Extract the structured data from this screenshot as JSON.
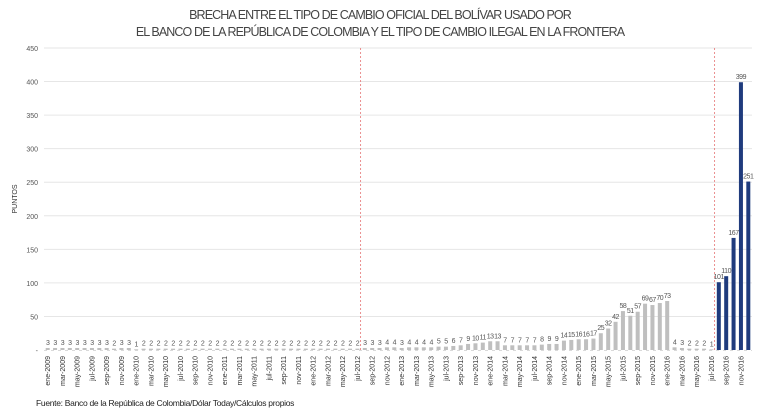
{
  "chart_data": {
    "type": "bar",
    "title": [
      "BRECHA ENTRE EL TIPO DE CAMBIO OFICIAL DEL BOLÍVAR USADO POR",
      "EL BANCO DE LA REPÚBLICA DE COLOMBIA Y EL TIPO DE CAMBIO ILEGAL EN LA FRONTERA"
    ],
    "ylabel": "PUNTOS",
    "xlabel": "",
    "ylim": [
      0,
      450
    ],
    "y_ticks": [
      "-",
      "50",
      "100",
      "150",
      "200",
      "250",
      "300",
      "350",
      "400",
      "450"
    ],
    "grid": true,
    "frequency": "monthly",
    "tick_labels": [
      "ene-2009",
      "mar-2009",
      "may-2009",
      "jul-2009",
      "sep-2009",
      "nov-2009",
      "ene-2010",
      "mar-2010",
      "may-2010",
      "jul-2010",
      "sep-2010",
      "nov-2010",
      "ene-2011",
      "mar-2011",
      "may-2011",
      "jul-2011",
      "sep-2011",
      "nov-2011",
      "ene-2012",
      "mar-2012",
      "may-2012",
      "jul-2012",
      "sep-2012",
      "nov-2012",
      "ene-2013",
      "mar-2013",
      "may-2013",
      "jul-2013",
      "sep-2013",
      "nov-2013",
      "ene-2014",
      "mar-2014",
      "may-2014",
      "jul-2014",
      "sep-2014",
      "nov-2014",
      "ene-2015",
      "mar-2015",
      "may-2015",
      "jul-2015",
      "sep-2015",
      "nov-2015",
      "ene-2016",
      "mar-2016",
      "may-2016",
      "jul-2016",
      "sep-2016",
      "nov-2016"
    ],
    "values": [
      3,
      3,
      3,
      3,
      3,
      3,
      3,
      3,
      3,
      2,
      3,
      3,
      1,
      2,
      2,
      2,
      2,
      2,
      2,
      2,
      2,
      2,
      2,
      2,
      2,
      2,
      2,
      2,
      2,
      2,
      2,
      2,
      2,
      2,
      2,
      2,
      2,
      2,
      2,
      2,
      2,
      2,
      2,
      3,
      3,
      3,
      4,
      4,
      3,
      4,
      4,
      4,
      4,
      5,
      5,
      6,
      7,
      9,
      10,
      11,
      13,
      13,
      7,
      7,
      7,
      7,
      7,
      8,
      9,
      9,
      14,
      15,
      16,
      16,
      17,
      25,
      32,
      42,
      58,
      51,
      57,
      69,
      67,
      70,
      73,
      4,
      3,
      2,
      2,
      2,
      1,
      101,
      110,
      167,
      399,
      251
    ],
    "highlight_from": "ago-2016",
    "colors": {
      "bar": "#bfbfbf",
      "highlight": "#1f3b7d",
      "divider": "#e57373",
      "grid": "#e6e6e6",
      "text": "#555555"
    },
    "dividers_after": [
      "jul-2012",
      "jul-2016"
    ]
  },
  "source": "Fuente: Banco de la República de Colombia/Dólar Today/Cálculos propios"
}
